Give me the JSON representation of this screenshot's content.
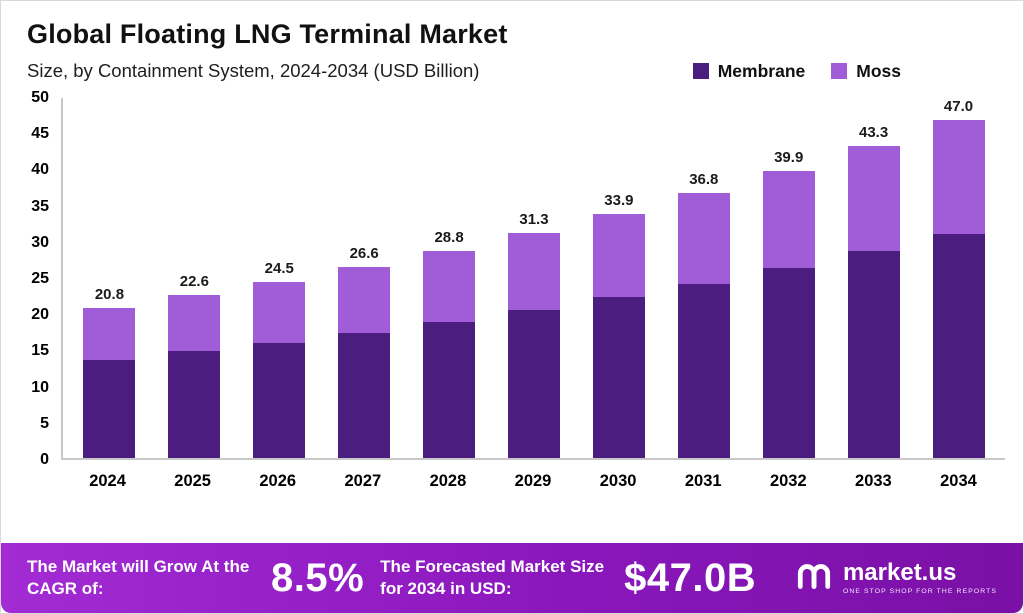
{
  "header": {
    "title": "Global Floating LNG Terminal Market",
    "subtitle": "Size, by Containment System, 2024-2034 (USD Billion)"
  },
  "legend": [
    {
      "label": "Membrane",
      "color": "#4A1D7E"
    },
    {
      "label": "Moss",
      "color": "#A15CD8"
    }
  ],
  "chart_data": {
    "type": "bar",
    "stacked": true,
    "title": "Global Floating LNG Terminal Market Size, by Containment System, 2024-2034 (USD Billion)",
    "xlabel": "",
    "ylabel": "",
    "ylim": [
      0,
      50
    ],
    "yticks": [
      0,
      5,
      10,
      15,
      20,
      25,
      30,
      35,
      40,
      45,
      50
    ],
    "grid": false,
    "legend_position": "top-right",
    "categories": [
      "2024",
      "2025",
      "2026",
      "2027",
      "2028",
      "2029",
      "2030",
      "2031",
      "2032",
      "2033",
      "2034"
    ],
    "series": [
      {
        "name": "Membrane",
        "color": "#4A1D7E",
        "values": [
          13.6,
          14.8,
          16.0,
          17.4,
          18.9,
          20.6,
          22.3,
          24.2,
          26.4,
          28.7,
          31.1
        ]
      },
      {
        "name": "Moss",
        "color": "#A15CD8",
        "values": [
          7.2,
          7.8,
          8.5,
          9.2,
          9.9,
          10.7,
          11.6,
          12.6,
          13.5,
          14.6,
          15.9
        ]
      }
    ],
    "totals": [
      20.8,
      22.6,
      24.5,
      26.6,
      28.8,
      31.3,
      33.9,
      36.8,
      39.9,
      43.3,
      47.0
    ]
  },
  "footer": {
    "cagr_label": "The Market will Grow At the CAGR of:",
    "cagr_value": "8.5%",
    "forecast_label": "The Forecasted Market Size for 2034 in USD:",
    "forecast_value": "$47.0B",
    "brand": "market.us",
    "tagline": "ONE STOP SHOP FOR THE REPORTS",
    "gradient": [
      "#A32BD4",
      "#8A17BC",
      "#7A10A5"
    ]
  }
}
